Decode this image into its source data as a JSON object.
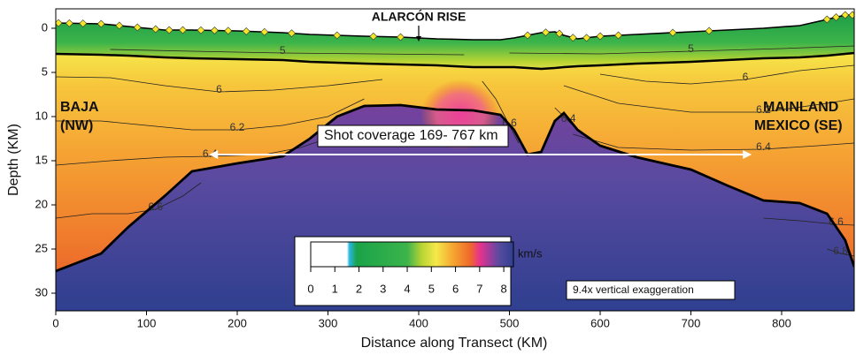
{
  "chart_data": {
    "type": "velocity-section",
    "x_label": "Distance along Transect (KM)",
    "y_label": "Depth (KM)",
    "xlim": [
      0,
      880
    ],
    "ylim": [
      -2.2,
      32
    ],
    "xticks": [
      0,
      100,
      200,
      300,
      400,
      500,
      600,
      700,
      800
    ],
    "yticks": [
      0,
      5,
      10,
      15,
      20,
      25,
      30
    ],
    "x": [
      0,
      50,
      80,
      120,
      150,
      200,
      250,
      280,
      310,
      340,
      380,
      420,
      460,
      490,
      505,
      520,
      535,
      550,
      560,
      575,
      600,
      640,
      700,
      740,
      780,
      820,
      850,
      870,
      880
    ],
    "seafloor": [
      -0.6,
      -0.5,
      -0.2,
      0.2,
      0.2,
      0.3,
      0.5,
      0.7,
      0.8,
      0.9,
      1.0,
      1.2,
      1.3,
      1.3,
      1.1,
      0.8,
      0.5,
      0.4,
      0.8,
      1.2,
      0.9,
      0.7,
      0.4,
      0.2,
      0,
      -0.3,
      -1.0,
      -1.5,
      -1.5
    ],
    "basement": [
      2.9,
      3.0,
      3.1,
      3.3,
      3.4,
      3.5,
      3.6,
      3.8,
      3.9,
      4.0,
      4.1,
      4.2,
      4.4,
      4.4,
      4.4,
      4.5,
      4.6,
      4.5,
      4.4,
      4.3,
      4.2,
      4.0,
      3.8,
      3.6,
      3.4,
      3.3,
      3.1,
      2.9,
      2.8
    ],
    "moho": [
      27.5,
      25.5,
      22.5,
      19,
      16.2,
      15.3,
      14.5,
      12.5,
      10,
      8.8,
      8.7,
      9.2,
      9.3,
      9.8,
      11.5,
      14.3,
      14,
      10.5,
      9.6,
      11.5,
      13.3,
      14.6,
      16,
      17.8,
      19.5,
      19.8,
      21,
      24,
      27
    ],
    "contours": [
      {
        "level": 5,
        "x": [
          60,
          150,
          250,
          350,
          450
        ],
        "depth": [
          2.4,
          2.6,
          2.8,
          2.9,
          3.0
        ]
      },
      {
        "level": 5,
        "x": [
          500,
          600,
          700,
          800,
          880
        ],
        "depth": [
          2.8,
          2.9,
          2.6,
          2.3,
          2.0
        ]
      },
      {
        "level": 6,
        "x": [
          0,
          60,
          120,
          180,
          240,
          300,
          360
        ],
        "depth": [
          5.5,
          5.6,
          6.5,
          7.2,
          7.0,
          6.5,
          5.8
        ]
      },
      {
        "level": 6,
        "x": [
          600,
          650,
          700,
          760,
          820,
          880
        ],
        "depth": [
          5.2,
          6.0,
          6.3,
          5.8,
          4.8,
          4.2
        ]
      },
      {
        "level": 6.2,
        "x": [
          0,
          50,
          100,
          150,
          200,
          250,
          300,
          340
        ],
        "depth": [
          10.5,
          10.5,
          11,
          11.5,
          11.5,
          11.0,
          10.0,
          8.0
        ]
      },
      {
        "level": 6.2,
        "x": [
          560,
          620,
          700,
          780,
          850,
          880
        ],
        "depth": [
          6.5,
          8.5,
          9.5,
          9.5,
          8.5,
          8
        ]
      },
      {
        "level": 6.4,
        "x": [
          0,
          60,
          120,
          170,
          230,
          270,
          290
        ],
        "depth": [
          15.5,
          15.0,
          14.6,
          14.5,
          14.3,
          13.5,
          12.8
        ]
      },
      {
        "level": 6.4,
        "x": [
          570,
          620,
          700,
          780,
          840,
          880
        ],
        "depth": [
          12,
          13.5,
          13.8,
          13.7,
          13.3,
          13
        ]
      },
      {
        "level": 6.6,
        "x": [
          0,
          40,
          80,
          110,
          140,
          160
        ],
        "depth": [
          21.5,
          21,
          21,
          20.5,
          19,
          17.5
        ]
      },
      {
        "level": 6.6,
        "x": [
          780,
          820,
          860,
          880
        ],
        "depth": [
          21.5,
          21.8,
          22.2,
          22.3
        ]
      },
      {
        "level": 6.8,
        "x": [
          850,
          865,
          880
        ],
        "depth": [
          25,
          25.5,
          25.8
        ]
      },
      {
        "level": 6.6,
        "x": [
          470,
          485,
          500,
          510
        ],
        "depth": [
          6,
          8,
          11,
          13
        ]
      },
      {
        "level": 6.4,
        "x": [
          550,
          565,
          580
        ],
        "depth": [
          9,
          10.5,
          12
        ]
      }
    ],
    "stations": [
      3,
      15,
      30,
      50,
      70,
      90,
      110,
      125,
      140,
      160,
      175,
      190,
      210,
      230,
      260,
      310,
      350,
      380,
      520,
      540,
      555,
      570,
      585,
      600,
      620,
      680,
      720,
      850,
      860,
      870,
      878
    ],
    "rise": {
      "label": "ALARCÓN RISE",
      "x": 400
    },
    "baja": [
      "BAJA",
      "(NW)"
    ],
    "mainland": [
      "MAINLAND",
      "MEXICO (SE)"
    ],
    "shot_coverage": {
      "label": "Shot coverage 169- 767 km",
      "x": [
        169,
        767
      ],
      "depth": 14.3
    },
    "exaggeration": "9.4x vertical exaggeration",
    "colorbar": {
      "unit": "km/s",
      "lim": [
        0,
        8.4
      ],
      "ticks": [
        0,
        1,
        2,
        3,
        4,
        5,
        6,
        7,
        8
      ],
      "stops": [
        {
          "value": 0,
          "color": "#ffffff"
        },
        {
          "value": 1.5,
          "color": "#ffffff"
        },
        {
          "value": 1.6,
          "color": "#2ab7e6"
        },
        {
          "value": 1.9,
          "color": "#1aa34a"
        },
        {
          "value": 4,
          "color": "#3cb44a"
        },
        {
          "value": 4.6,
          "color": "#b8d433"
        },
        {
          "value": 5.2,
          "color": "#f5e94a"
        },
        {
          "value": 5.9,
          "color": "#f6a531"
        },
        {
          "value": 6.6,
          "color": "#ef6a2a"
        },
        {
          "value": 7.0,
          "color": "#e8338a"
        },
        {
          "value": 7.4,
          "color": "#a23c9b"
        },
        {
          "value": 7.8,
          "color": "#5a4aa0"
        },
        {
          "value": 8.4,
          "color": "#2f3f8f"
        }
      ]
    }
  }
}
